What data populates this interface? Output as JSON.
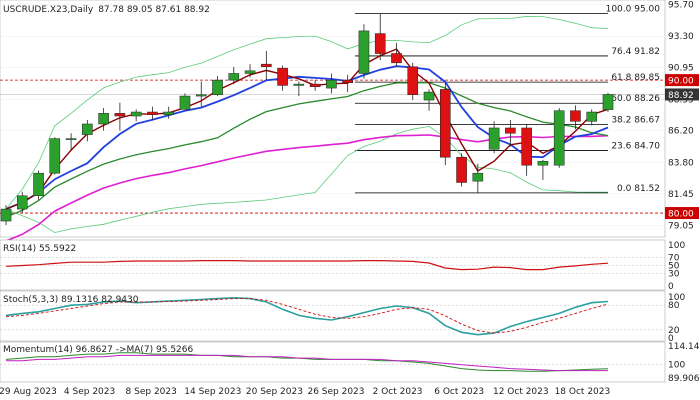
{
  "header": {
    "symbol": "USCRUDE.X23",
    "timeframe": "Daily",
    "ohlc": "87.78 89.05 87.61 88.92"
  },
  "price_axis": {
    "ticks": [
      "95.70",
      "93.30",
      "90.95",
      "88.55",
      "86.20",
      "83.80",
      "81.45",
      "79.05"
    ],
    "current_price_label": "88.92",
    "level_90_label": "90.00",
    "level_80_label": "80.00"
  },
  "fibonacci": [
    {
      "label": "100.0 95.00",
      "price": 95.0
    },
    {
      "label": "76.4 91.82",
      "price": 91.82
    },
    {
      "label": "61.8 89.85",
      "price": 89.85
    },
    {
      "label": "50.0 88.26",
      "price": 88.26
    },
    {
      "label": "38.2 86.67",
      "price": 86.67
    },
    {
      "label": "23.6 84.70",
      "price": 84.7
    },
    {
      "label": "0.0 81.52",
      "price": 81.52
    }
  ],
  "rsi_panel": {
    "label": "RSI(14) 55.5922",
    "ticks": [
      "100",
      "70",
      "50",
      "30",
      "0"
    ]
  },
  "stoch_panel": {
    "label": "Stoch(5,3,3) 89.1316 82.9430",
    "ticks": [
      "100",
      "80",
      "20",
      "0"
    ]
  },
  "momentum_panel": {
    "label": "Momentum(14) 96.8627 ->MA(7) 95.5266",
    "ticks": [
      "114.1455",
      "100",
      "89.9062"
    ]
  },
  "date_axis": [
    "29 Aug 2023",
    "4 Sep 2023",
    "8 Sep 2023",
    "14 Sep 2023",
    "20 Sep 2023",
    "26 Sep 2023",
    "2 Oct 2023",
    "6 Oct 2023",
    "12 Oct 2023",
    "18 Oct 2023"
  ],
  "colors": {
    "bull": "#2ca02c",
    "bear": "#dd1111",
    "ma_short": "#8b0000",
    "ma_mid": "#1f3fdf",
    "ma_long": "#2a8a2a",
    "ma_very_long": "#e020d0",
    "bollinger": "#5acc7a",
    "fib_line": "#000000",
    "red_level": "#cc0000"
  },
  "chart_data": {
    "type": "candlestick",
    "dates": [
      "28 Aug",
      "29 Aug",
      "30 Aug",
      "31 Aug",
      "1 Sep",
      "4 Sep",
      "5 Sep",
      "6 Sep",
      "7 Sep",
      "8 Sep",
      "11 Sep",
      "12 Sep",
      "13 Sep",
      "14 Sep",
      "15 Sep",
      "18 Sep",
      "19 Sep",
      "20 Sep",
      "21 Sep",
      "22 Sep",
      "25 Sep",
      "26 Sep",
      "27 Sep",
      "28 Sep",
      "29 Sep",
      "2 Oct",
      "3 Oct",
      "4 Oct",
      "5 Oct",
      "6 Oct",
      "9 Oct",
      "10 Oct",
      "11 Oct",
      "12 Oct",
      "13 Oct",
      "16 Oct",
      "17 Oct",
      "18 Oct"
    ],
    "ohlc": [
      [
        79.4,
        80.6,
        79.1,
        80.3
      ],
      [
        80.3,
        81.6,
        80.0,
        81.3
      ],
      [
        81.3,
        83.2,
        81.0,
        83.0
      ],
      [
        83.0,
        85.7,
        82.9,
        85.6
      ],
      [
        85.6,
        86.0,
        84.7,
        85.6
      ],
      [
        85.9,
        87.0,
        85.4,
        86.7
      ],
      [
        86.7,
        87.9,
        86.2,
        87.5
      ],
      [
        87.5,
        88.3,
        86.2,
        87.3
      ],
      [
        87.3,
        87.8,
        86.9,
        87.6
      ],
      [
        87.6,
        88.0,
        87.0,
        87.4
      ],
      [
        87.4,
        88.0,
        87.1,
        87.6
      ],
      [
        87.8,
        89.0,
        87.8,
        88.8
      ],
      [
        88.8,
        89.9,
        88.0,
        88.9
      ],
      [
        88.9,
        90.3,
        88.8,
        90.0
      ],
      [
        90.0,
        91.0,
        89.7,
        90.5
      ],
      [
        90.5,
        91.2,
        90.2,
        90.7
      ],
      [
        91.2,
        92.2,
        90.0,
        91.0
      ],
      [
        90.9,
        91.1,
        89.2,
        89.6
      ],
      [
        89.6,
        89.9,
        88.8,
        89.7
      ],
      [
        89.7,
        90.0,
        89.2,
        89.5
      ],
      [
        89.4,
        90.5,
        89.0,
        90.0
      ],
      [
        90.0,
        90.4,
        89.1,
        89.8
      ],
      [
        90.5,
        94.2,
        90.1,
        93.7
      ],
      [
        93.5,
        95.0,
        91.5,
        92.0
      ],
      [
        92.0,
        92.8,
        91.0,
        91.3
      ],
      [
        91.0,
        91.3,
        88.5,
        88.9
      ],
      [
        88.5,
        89.3,
        87.7,
        89.1
      ],
      [
        89.3,
        89.8,
        83.6,
        84.2
      ],
      [
        84.2,
        84.5,
        82.0,
        82.3
      ],
      [
        82.4,
        83.7,
        81.5,
        83.0
      ],
      [
        84.8,
        86.9,
        84.5,
        86.4
      ],
      [
        86.4,
        87.0,
        85.0,
        86.0
      ],
      [
        86.4,
        86.7,
        82.8,
        83.6
      ],
      [
        83.6,
        84.0,
        82.5,
        83.9
      ],
      [
        83.6,
        87.9,
        83.4,
        87.7
      ],
      [
        87.7,
        88.1,
        86.3,
        86.9
      ],
      [
        86.9,
        87.8,
        86.6,
        87.6
      ],
      [
        87.78,
        89.05,
        87.61,
        88.92
      ]
    ],
    "ylim": [
      78.5,
      95.8
    ],
    "rsi": [
      48,
      50,
      52,
      55,
      58,
      58,
      58,
      60,
      61,
      61,
      61,
      61,
      62,
      62,
      62,
      61,
      61,
      61,
      61,
      61,
      61,
      61,
      62,
      62,
      61,
      60,
      56,
      44,
      40,
      41,
      46,
      45,
      40,
      40,
      46,
      49,
      53,
      55.59
    ],
    "stoch_k": [
      55,
      60,
      64,
      72,
      80,
      82,
      88,
      90,
      86,
      88,
      90,
      92,
      94,
      96,
      98,
      96,
      88,
      70,
      55,
      48,
      44,
      52,
      62,
      72,
      78,
      74,
      60,
      30,
      14,
      8,
      12,
      28,
      40,
      50,
      60,
      75,
      86,
      89.13
    ],
    "stoch_d": [
      52,
      55,
      60,
      66,
      72,
      78,
      84,
      88,
      88,
      88,
      89,
      90,
      92,
      94,
      96,
      96,
      92,
      82,
      70,
      58,
      50,
      48,
      52,
      60,
      70,
      74,
      70,
      54,
      34,
      18,
      12,
      16,
      26,
      38,
      48,
      60,
      72,
      82.94
    ],
    "momentum": [
      104,
      105,
      106,
      106,
      107,
      108,
      108,
      109,
      109,
      108,
      108,
      108,
      107,
      107,
      106,
      106,
      106,
      105,
      105,
      104,
      104,
      104,
      104,
      103,
      103,
      102,
      101,
      99,
      97,
      96,
      95.5,
      95.5,
      95,
      95,
      95.5,
      96,
      96.5,
      96.86
    ],
    "momentum_ma": [
      103,
      103,
      104,
      104,
      105,
      106,
      106,
      107,
      107,
      107,
      107,
      107,
      107,
      107,
      107,
      106,
      106,
      106,
      105,
      105,
      104,
      104,
      104,
      104,
      103,
      103,
      102,
      101,
      100,
      99,
      98,
      97,
      96.5,
      96,
      95.5,
      95.5,
      95.5,
      95.53
    ]
  }
}
